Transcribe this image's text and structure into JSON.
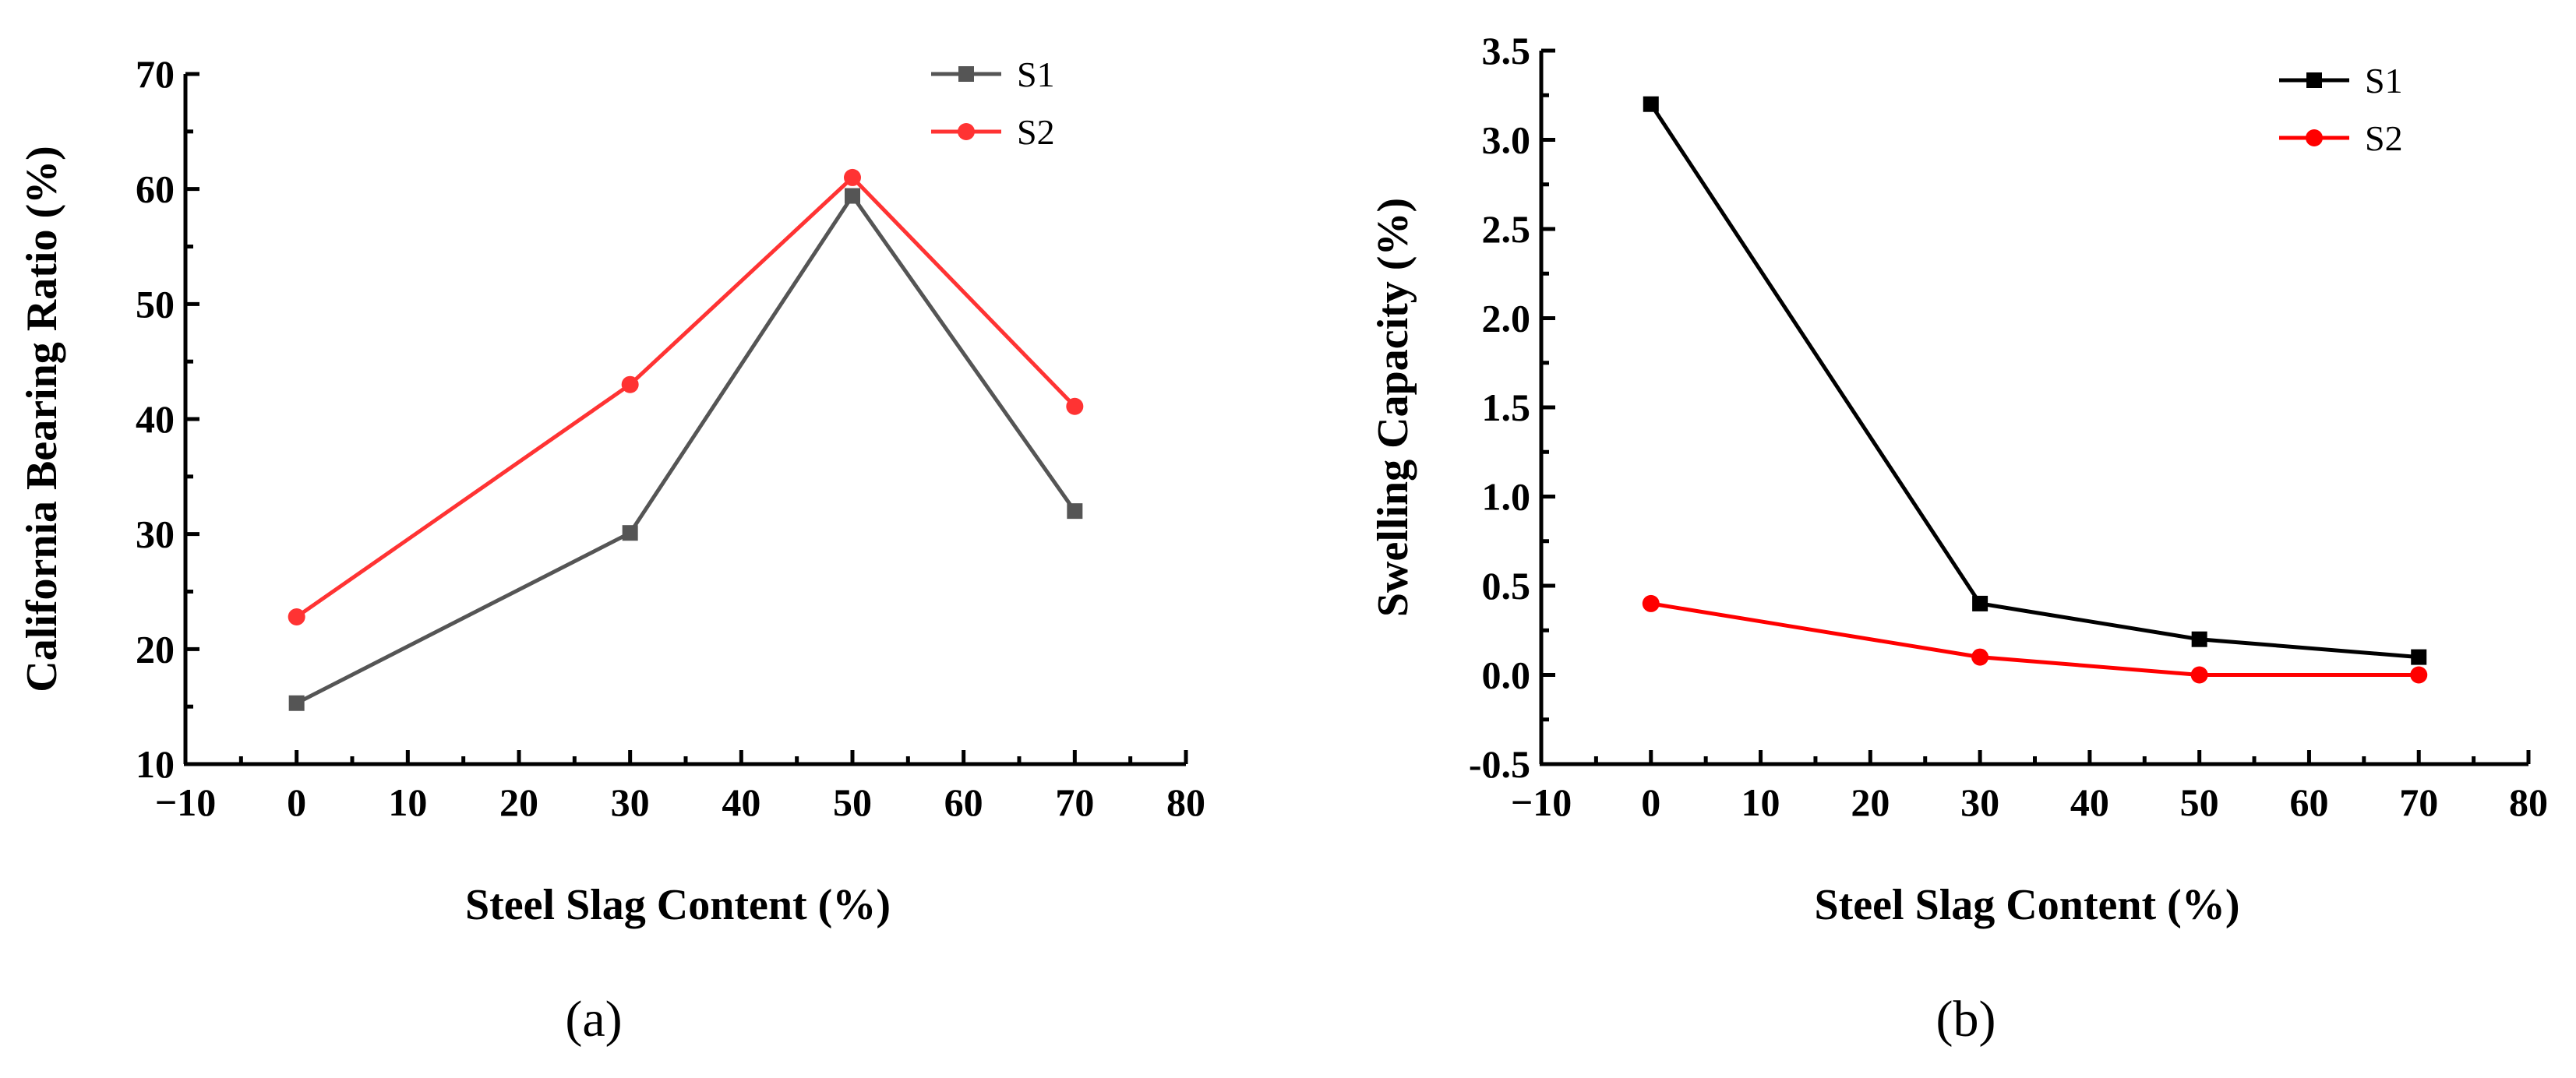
{
  "chart_data": [
    {
      "type": "line",
      "panel_label": "(a)",
      "title": "",
      "xlabel": "Steel Slag Content (%)",
      "ylabel": "California Bearing Ratio (%)",
      "xlim": [
        -10,
        80
      ],
      "ylim": [
        10,
        70
      ],
      "xticks": [
        -10,
        0,
        10,
        20,
        30,
        40,
        50,
        60,
        70,
        80
      ],
      "yticks": [
        10,
        20,
        30,
        40,
        50,
        60,
        70
      ],
      "xtick_labels": [
        "−10",
        "0",
        "10",
        "20",
        "30",
        "40",
        "50",
        "60",
        "70",
        "80"
      ],
      "ytick_labels": [
        "10",
        "20",
        "30",
        "40",
        "50",
        "60",
        "70"
      ],
      "legend": "top-right",
      "series": [
        {
          "name": "S1",
          "color": "#555555",
          "marker": "square",
          "x": [
            0,
            30,
            50,
            70
          ],
          "values": [
            15.3,
            30.1,
            59.4,
            32.0
          ]
        },
        {
          "name": "S2",
          "color": "#ff3333",
          "marker": "circle",
          "x": [
            0,
            30,
            50,
            70
          ],
          "values": [
            22.8,
            43.0,
            61.0,
            41.1
          ]
        }
      ]
    },
    {
      "type": "line",
      "panel_label": "(b)",
      "title": "",
      "xlabel": "Steel Slag Content (%)",
      "ylabel": "Swelling Capacity (%)",
      "xlim": [
        -10,
        80
      ],
      "ylim": [
        -0.5,
        3.5
      ],
      "xticks": [
        -10,
        0,
        10,
        20,
        30,
        40,
        50,
        60,
        70,
        80
      ],
      "yticks": [
        -0.5,
        0.0,
        0.5,
        1.0,
        1.5,
        2.0,
        2.5,
        3.0,
        3.5
      ],
      "xtick_labels": [
        "−10",
        "0",
        "10",
        "20",
        "30",
        "40",
        "50",
        "60",
        "70",
        "80"
      ],
      "ytick_labels": [
        "-0.5",
        "0.0",
        "0.5",
        "1.0",
        "1.5",
        "2.0",
        "2.5",
        "3.0",
        "3.5"
      ],
      "legend": "top-right",
      "series": [
        {
          "name": "S1",
          "color": "#000000",
          "marker": "square",
          "x": [
            0,
            30,
            50,
            70
          ],
          "values": [
            3.2,
            0.4,
            0.2,
            0.1
          ]
        },
        {
          "name": "S2",
          "color": "#ff0000",
          "marker": "circle",
          "x": [
            0,
            30,
            50,
            70
          ],
          "values": [
            0.4,
            0.1,
            0.0,
            0.0
          ]
        }
      ]
    }
  ]
}
